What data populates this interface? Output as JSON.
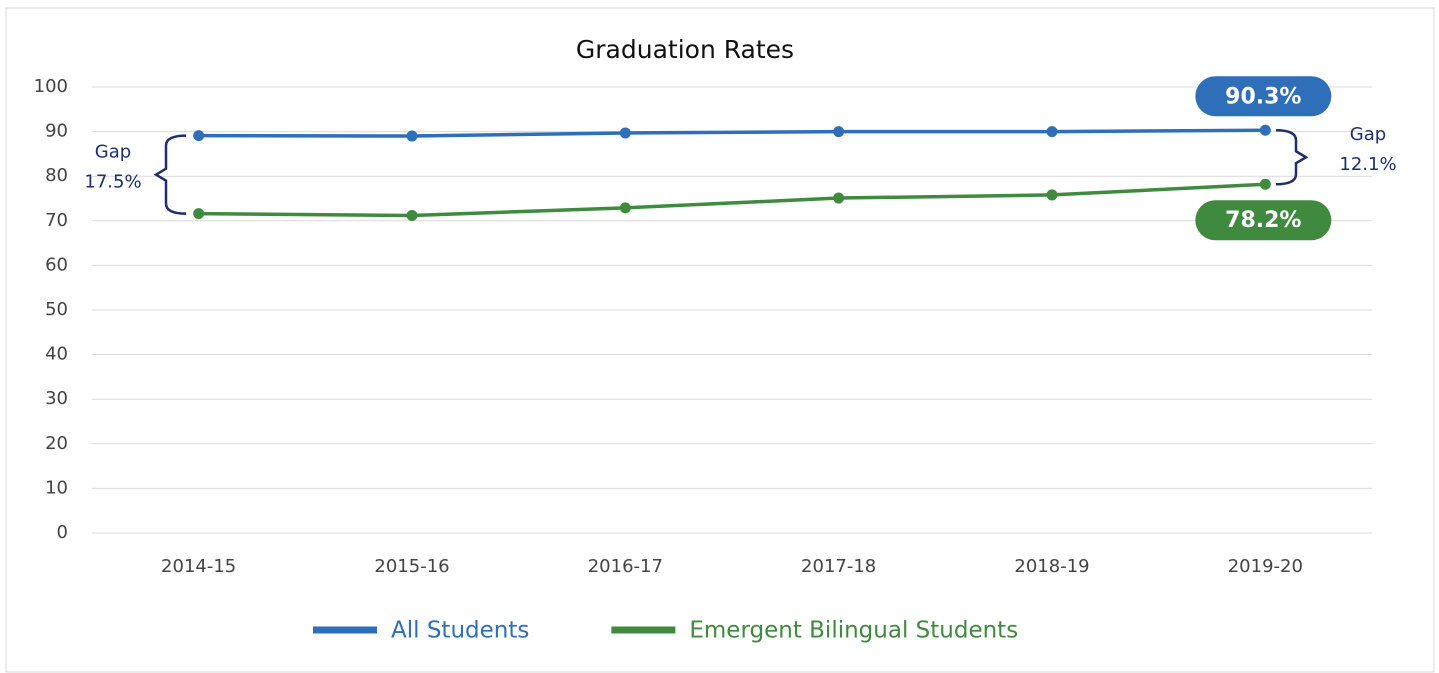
{
  "chart_data": {
    "type": "line",
    "title": "Graduation Rates",
    "categories": [
      "2014-15",
      "2015-16",
      "2016-17",
      "2017-18",
      "2018-19",
      "2019-20"
    ],
    "series": [
      {
        "name": "All Students",
        "color": "#2f6fba",
        "values": [
          89.1,
          89.0,
          89.7,
          90.0,
          90.0,
          90.3
        ],
        "value_labels": [
          null,
          null,
          null,
          null,
          null,
          "90.3%"
        ]
      },
      {
        "name": "Emergent Bilingual Students",
        "color": "#3f8a3f",
        "values": [
          71.6,
          71.2,
          72.9,
          75.1,
          75.8,
          78.2
        ],
        "value_labels": [
          null,
          null,
          null,
          null,
          null,
          "78.2%"
        ]
      }
    ],
    "annotations": [
      {
        "label": "Gap",
        "value": "17.5%"
      },
      {
        "label": "Gap",
        "value": "12.1%"
      }
    ],
    "ylim": [
      0,
      100
    ],
    "yticks": [
      0,
      10,
      20,
      30,
      40,
      50,
      60,
      70,
      80,
      90,
      100
    ],
    "grid": true,
    "legend": "bottom"
  }
}
